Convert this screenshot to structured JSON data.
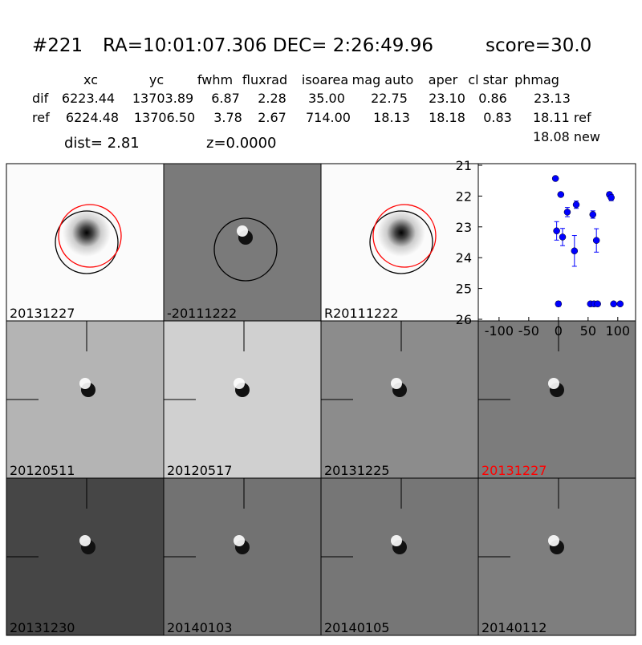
{
  "header": {
    "id": "#221",
    "coords": "RA=10:01:07.306 DEC= 2:26:49.96",
    "score": "score=30.0"
  },
  "table": {
    "columns": [
      "xc",
      "yc",
      "fwhm",
      "fluxrad",
      "isoarea",
      "mag auto",
      "aper",
      "cl star",
      "phmag"
    ],
    "rows": [
      [
        "dif",
        "6223.44",
        "13703.89",
        "6.87",
        "2.28",
        "35.00",
        "22.75",
        "23.10",
        "0.86",
        "23.13"
      ],
      [
        "ref",
        "6224.48",
        "13706.50",
        "3.78",
        "2.67",
        "714.00",
        "18.13",
        "18.18",
        "0.83",
        "18.11 ref"
      ]
    ],
    "extra": "18.08 new"
  },
  "dist": "dist=  2.81",
  "z": "z=0.0000",
  "stamps": [
    {
      "label": "20131227",
      "color": "#000000"
    },
    {
      "label": "-20111222",
      "color": "#000000"
    },
    {
      "label": "R20111222",
      "color": "#000000"
    },
    {
      "label": "20120511",
      "color": "#000000"
    },
    {
      "label": "20120517",
      "color": "#000000"
    },
    {
      "label": "20131225",
      "color": "#000000"
    },
    {
      "label": "20131227",
      "color": "#ff0000"
    },
    {
      "label": "20131230",
      "color": "#000000"
    },
    {
      "label": "20140103",
      "color": "#000000"
    },
    {
      "label": "20140105",
      "color": "#000000"
    },
    {
      "label": "20140112",
      "color": "#000000"
    }
  ],
  "chart_data": {
    "type": "scatter",
    "color": "#0000ff",
    "x": [
      -5,
      -3,
      0,
      4,
      7,
      15,
      27,
      30,
      54,
      58,
      60,
      64,
      66,
      86,
      89,
      93,
      104
    ],
    "values": [
      21.43,
      23.13,
      25.5,
      21.95,
      23.33,
      22.52,
      23.78,
      22.28,
      25.5,
      22.6,
      25.5,
      23.44,
      25.5,
      21.95,
      22.05,
      25.5,
      25.5
    ],
    "errors": [
      0.05,
      0.3,
      0.08,
      0.05,
      0.28,
      0.15,
      0.5,
      0.12,
      null,
      0.12,
      null,
      0.38,
      null,
      0.08,
      0.1,
      null,
      null
    ],
    "xlim": [
      -135,
      130
    ],
    "xticks": [
      -100,
      -50,
      0,
      50,
      100
    ],
    "ylim": [
      26,
      21
    ],
    "yticks": [
      21,
      22,
      23,
      24,
      25,
      26
    ]
  }
}
